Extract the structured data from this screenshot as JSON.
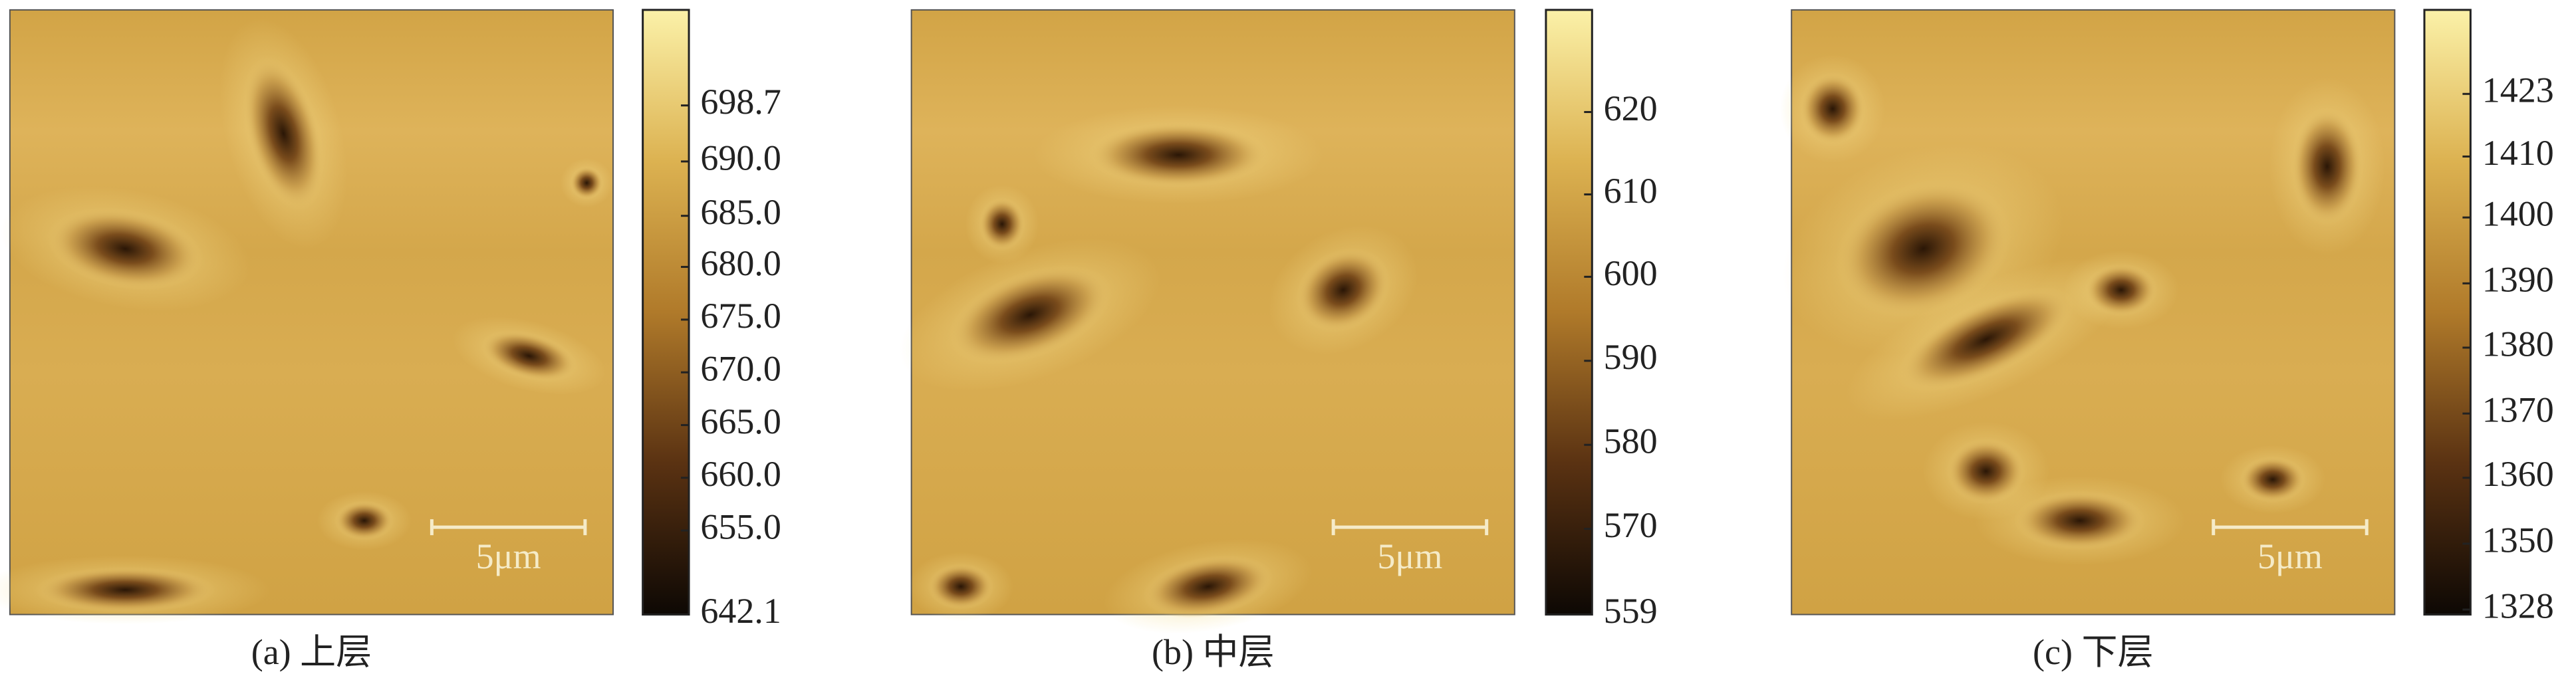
{
  "panels": [
    {
      "caption": "(a) 上层",
      "scale_bar": "5μm",
      "colorbar_ticks": [
        "698.7",
        "690.0",
        "685.0",
        "680.0",
        "675.0",
        "670.0",
        "665.0",
        "660.0",
        "655.0",
        "642.1"
      ]
    },
    {
      "caption": "(b) 中层",
      "scale_bar": "5μm",
      "colorbar_ticks": [
        "620",
        "610",
        "600",
        "590",
        "580",
        "570",
        "559"
      ]
    },
    {
      "caption": "(c) 下层",
      "scale_bar": "5μm",
      "colorbar_ticks": [
        "1423",
        "1410",
        "1400",
        "1390",
        "1380",
        "1370",
        "1360",
        "1350",
        "1328"
      ]
    }
  ]
}
